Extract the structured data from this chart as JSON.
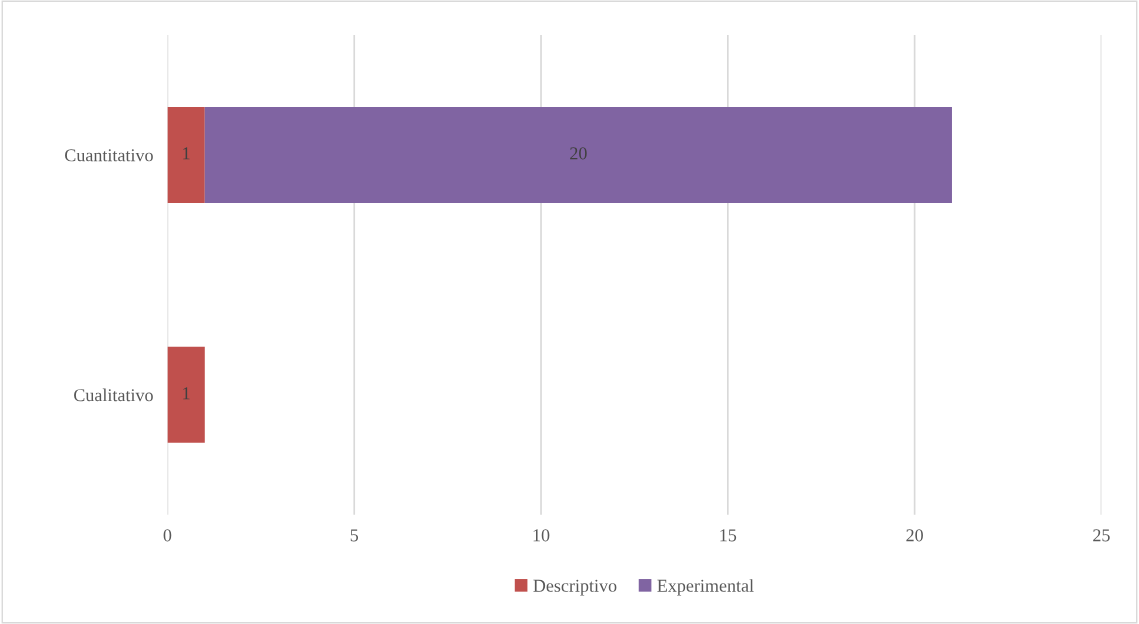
{
  "chart_data": {
    "type": "bar",
    "orientation": "horizontal",
    "stacked": true,
    "categories": [
      "Cuantitativo",
      "Cualitativo"
    ],
    "series": [
      {
        "name": "Descriptivo",
        "color": "#c0504d",
        "values": [
          1,
          1
        ]
      },
      {
        "name": "Experimental",
        "color": "#8064a2",
        "values": [
          20,
          null
        ]
      }
    ],
    "xlim": [
      0,
      25
    ],
    "xticks": [
      0,
      5,
      10,
      15,
      20,
      25
    ],
    "grid": "x",
    "legend": "bottom",
    "data_labels": true
  }
}
